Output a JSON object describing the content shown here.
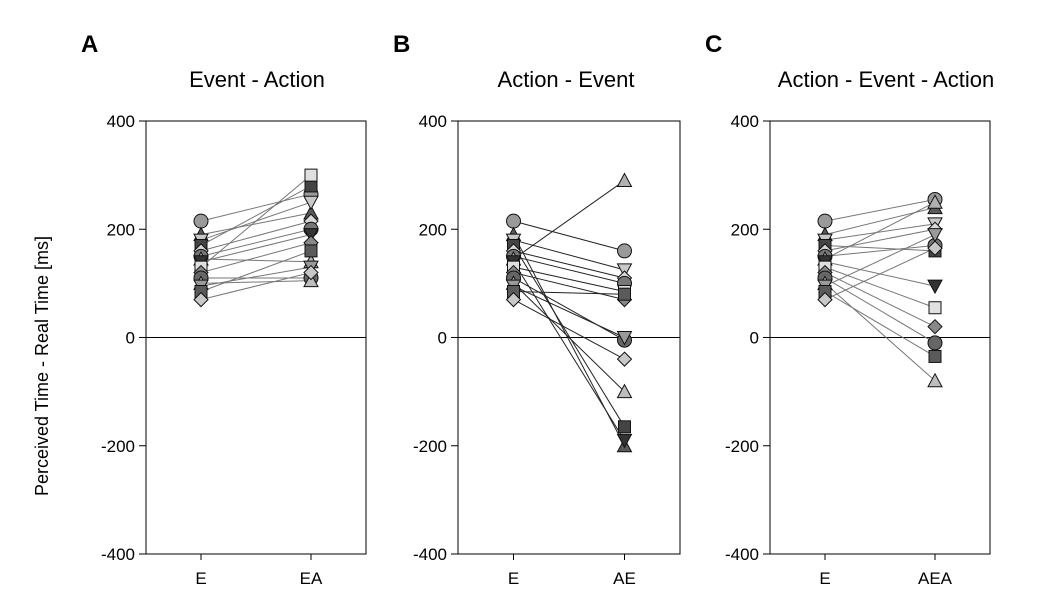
{
  "ylabel": "Perceived Time - Real Time [ms]",
  "chart_data": [
    {
      "type": "scatter",
      "panel": "A",
      "title": "Event - Action",
      "categories": [
        "E",
        "EA"
      ],
      "ylim": [
        -400,
        400
      ],
      "yticks": [
        400,
        200,
        0,
        -200,
        -400
      ],
      "grid": false,
      "legend": "none",
      "series": [
        {
          "values": [
            215,
            265
          ]
        },
        {
          "values": [
            190,
            230
          ]
        },
        {
          "values": [
            180,
            250
          ]
        },
        {
          "values": [
            170,
            280
          ]
        },
        {
          "values": [
            160,
            215
          ]
        },
        {
          "values": [
            150,
            200
          ]
        },
        {
          "values": [
            145,
            140
          ]
        },
        {
          "values": [
            140,
            190
          ]
        },
        {
          "values": [
            130,
            300
          ]
        },
        {
          "values": [
            120,
            175
          ]
        },
        {
          "values": [
            110,
            110
          ]
        },
        {
          "values": [
            100,
            105
          ]
        },
        {
          "values": [
            95,
            130
          ]
        },
        {
          "values": [
            85,
            160
          ]
        },
        {
          "values": [
            70,
            120
          ]
        }
      ]
    },
    {
      "type": "scatter",
      "panel": "B",
      "title": "Action - Event",
      "categories": [
        "E",
        "AE"
      ],
      "ylim": [
        -400,
        400
      ],
      "yticks": [
        400,
        200,
        0,
        -200,
        -400
      ],
      "grid": false,
      "legend": "none",
      "series": [
        {
          "values": [
            215,
            160
          ]
        },
        {
          "values": [
            190,
            -200
          ]
        },
        {
          "values": [
            180,
            125
          ]
        },
        {
          "values": [
            170,
            -165
          ]
        },
        {
          "values": [
            160,
            110
          ]
        },
        {
          "values": [
            150,
            100
          ]
        },
        {
          "values": [
            145,
            290
          ]
        },
        {
          "values": [
            140,
            -190
          ]
        },
        {
          "values": [
            130,
            85
          ]
        },
        {
          "values": [
            120,
            70
          ]
        },
        {
          "values": [
            110,
            -5
          ]
        },
        {
          "values": [
            100,
            -100
          ]
        },
        {
          "values": [
            95,
            0
          ]
        },
        {
          "values": [
            85,
            80
          ]
        },
        {
          "values": [
            70,
            -40
          ]
        }
      ]
    },
    {
      "type": "scatter",
      "panel": "C",
      "title": "Action - Event - Action",
      "categories": [
        "E",
        "AEA"
      ],
      "ylim": [
        -400,
        400
      ],
      "yticks": [
        400,
        200,
        0,
        -200,
        -400
      ],
      "grid": false,
      "legend": "none",
      "series": [
        {
          "values": [
            215,
            255
          ]
        },
        {
          "values": [
            190,
            240
          ]
        },
        {
          "values": [
            180,
            210
          ]
        },
        {
          "values": [
            170,
            160
          ]
        },
        {
          "values": [
            160,
            200
          ]
        },
        {
          "values": [
            150,
            170
          ]
        },
        {
          "values": [
            145,
            250
          ]
        },
        {
          "values": [
            140,
            95
          ]
        },
        {
          "values": [
            130,
            55
          ]
        },
        {
          "values": [
            120,
            20
          ]
        },
        {
          "values": [
            110,
            -10
          ]
        },
        {
          "values": [
            100,
            -80
          ]
        },
        {
          "values": [
            95,
            190
          ]
        },
        {
          "values": [
            85,
            -35
          ]
        },
        {
          "values": [
            70,
            165
          ]
        }
      ]
    }
  ]
}
